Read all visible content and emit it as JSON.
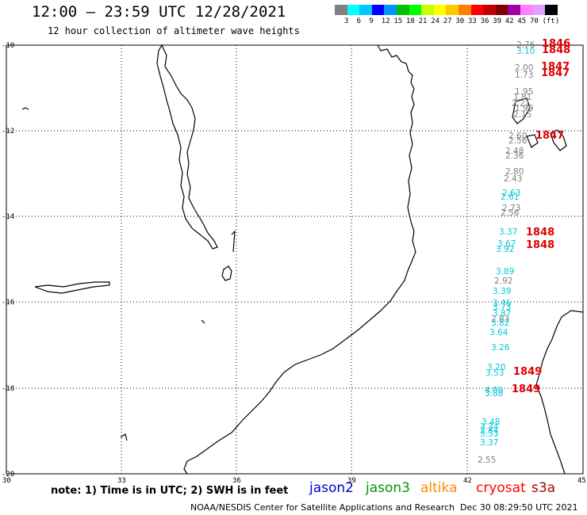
{
  "header": {
    "title": "12:00 – 23:59 UTC 12/28/2021",
    "subtitle": "12 hour collection of altimeter wave heights"
  },
  "color_scale": {
    "unit": "(ft)",
    "colors": [
      "#808080",
      "#00ffff",
      "#00c8ff",
      "#0000ff",
      "#0096ff",
      "#00c000",
      "#00ff00",
      "#c8ff00",
      "#ffff00",
      "#ffc800",
      "#ff8000",
      "#ff0000",
      "#c00000",
      "#800000",
      "#a000a0",
      "#ff80ff",
      "#e0a0ff",
      "#000000"
    ],
    "labels": [
      "3",
      "6",
      "9",
      "12",
      "15",
      "18",
      "21",
      "24",
      "27",
      "30",
      "33",
      "36",
      "39",
      "42",
      "45",
      "70"
    ]
  },
  "axes": {
    "lat_labels": [
      "-10",
      "-12",
      "-14",
      "-16",
      "-18",
      "-20"
    ],
    "lon_labels": [
      "30",
      "33",
      "36",
      "39",
      "42",
      "45"
    ]
  },
  "observations": [
    {
      "v": "2.76",
      "c": "#808080"
    },
    {
      "v": "3.10",
      "c": "#00c8d8"
    },
    {
      "v": "2.00",
      "c": "#808080"
    },
    {
      "v": "1.73",
      "c": "#808080"
    },
    {
      "v": "1.95",
      "c": "#808080"
    },
    {
      "v": "1.81",
      "c": "#808080"
    },
    {
      "v": "2.21",
      "c": "#808080"
    },
    {
      "v": "1.99",
      "c": "#808080"
    },
    {
      "v": "2.15",
      "c": "#808080"
    },
    {
      "v": "2.60",
      "c": "#808080"
    },
    {
      "v": "2.56",
      "c": "#808080"
    },
    {
      "v": "2.48",
      "c": "#808080"
    },
    {
      "v": "2.36",
      "c": "#808080"
    },
    {
      "v": "2.80",
      "c": "#808080"
    },
    {
      "v": "2.43",
      "c": "#808080"
    },
    {
      "v": "2.63",
      "c": "#00c8d8"
    },
    {
      "v": "2.61",
      "c": "#00c8d8"
    },
    {
      "v": "2.73",
      "c": "#808080"
    },
    {
      "v": "2.56",
      "c": "#808080"
    },
    {
      "v": "3.37",
      "c": "#00c8d8"
    },
    {
      "v": "3.67",
      "c": "#00c8d8"
    },
    {
      "v": "3.92",
      "c": "#00c8d8"
    },
    {
      "v": "3.89",
      "c": "#00c8d8"
    },
    {
      "v": "2.92",
      "c": "#808080"
    },
    {
      "v": "3.39",
      "c": "#00c8d8"
    },
    {
      "v": "3.46",
      "c": "#00c8d8"
    },
    {
      "v": "3.73",
      "c": "#00c8d8"
    },
    {
      "v": "3.87",
      "c": "#00c8d8"
    },
    {
      "v": "2.83",
      "c": "#808080"
    },
    {
      "v": "3.82",
      "c": "#00c8d8"
    },
    {
      "v": "3.64",
      "c": "#00c8d8"
    },
    {
      "v": "3.26",
      "c": "#00c8d8"
    },
    {
      "v": "3.20",
      "c": "#00c8d8"
    },
    {
      "v": "3.53",
      "c": "#00c8d8"
    },
    {
      "v": "4.09",
      "c": "#00c8d8"
    },
    {
      "v": "3.88",
      "c": "#00c8d8"
    },
    {
      "v": "3.48",
      "c": "#00c8d8"
    },
    {
      "v": "3.34",
      "c": "#00c8d8"
    },
    {
      "v": "2.84",
      "c": "#00c8d8"
    },
    {
      "v": "3.33",
      "c": "#00c8d8"
    },
    {
      "v": "3.37",
      "c": "#00c8d8"
    },
    {
      "v": "2.55",
      "c": "#808080"
    }
  ],
  "pass_labels": [
    "1846",
    "1848",
    "1847",
    "1847",
    "1847",
    "1848",
    "1848",
    "1849",
    "1849"
  ],
  "legend": {
    "note": "note:  1) Time is in UTC;  2) SWH is in feet",
    "items": [
      {
        "label": "jason2",
        "color": "#0000cc"
      },
      {
        "label": "jason3",
        "color": "#009900"
      },
      {
        "label": "altika",
        "color": "#ff8800"
      },
      {
        "label": "cryosat",
        "color": "#ff0000"
      },
      {
        "label": "s3a",
        "color": "#aa0000"
      }
    ]
  },
  "footer": {
    "credit": "NOAA/NESDIS Center for Satellite Applications and Research",
    "timestamp": "Dec 30 08:29:50 UTC 2021"
  }
}
